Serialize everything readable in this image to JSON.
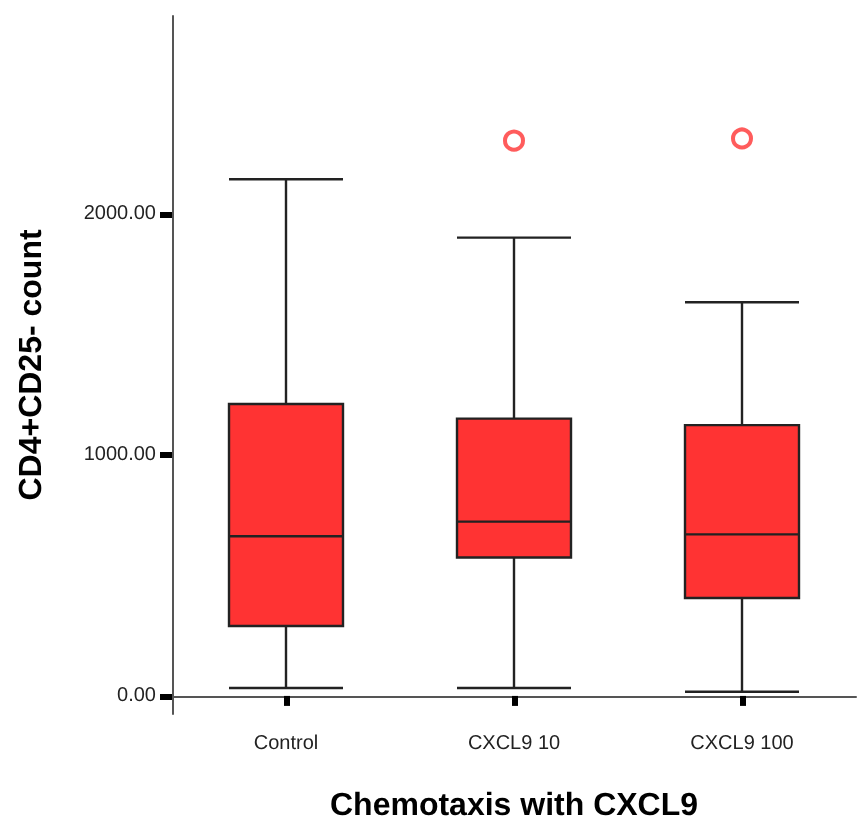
{
  "chart_data": {
    "type": "box",
    "xlabel": "Chemotaxis with CXCL9",
    "ylabel": "CD4+CD25- count",
    "categories": [
      "Control",
      "CXCL9 10",
      "CXCL9 100"
    ],
    "series": [
      {
        "color": "#ff3333",
        "boxes": [
          {
            "low": 33,
            "q1": 290,
            "median": 662,
            "q3": 1211,
            "high": 2143
          },
          {
            "low": 33,
            "q1": 574,
            "median": 723,
            "q3": 1150,
            "high": 1901,
            "outliers": [
              2303
            ]
          },
          {
            "low": 17,
            "q1": 406,
            "median": 670,
            "q3": 1123,
            "high": 1633,
            "outliers": [
              2312
            ]
          }
        ]
      }
    ],
    "ylim": [
      -75,
      2820
    ],
    "yticks": [
      {
        "value": 0,
        "label": "0.00"
      },
      {
        "value": 1000,
        "label": "1000.00"
      },
      {
        "value": 2000,
        "label": "2000.00"
      }
    ],
    "grid": false
  }
}
